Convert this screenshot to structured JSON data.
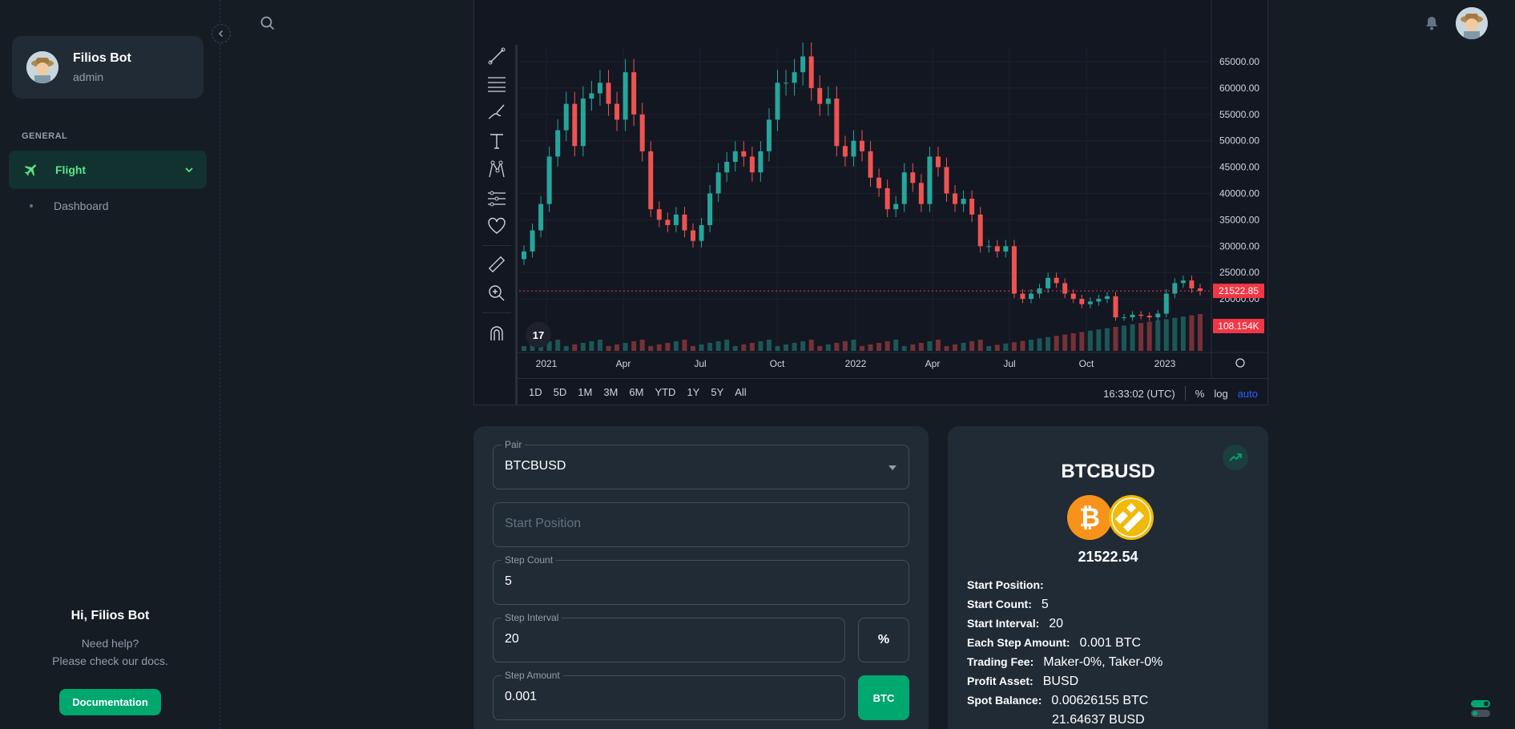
{
  "sidebar": {
    "user": {
      "name": "Filios Bot",
      "role": "admin"
    },
    "section_header": "GENERAL",
    "nav": {
      "flight_label": "Flight",
      "dashboard_label": "Dashboard"
    },
    "help": {
      "title": "Hi, Filios Bot",
      "line1": "Need help?",
      "line2": "Please check our docs.",
      "button": "Documentation"
    }
  },
  "chart": {
    "price_axis": [
      "65000.00",
      "60000.00",
      "55000.00",
      "50000.00",
      "45000.00",
      "40000.00",
      "35000.00",
      "30000.00",
      "25000.00",
      "20000.00"
    ],
    "last_price_label": "21522.85",
    "volume_label": "108.154K",
    "time_axis": [
      "2021",
      "Apr",
      "Jul",
      "Oct",
      "2022",
      "Apr",
      "Jul",
      "Oct",
      "2023"
    ],
    "ranges": [
      "1D",
      "5D",
      "1M",
      "3M",
      "6M",
      "YTD",
      "1Y",
      "5Y",
      "All"
    ],
    "clock": "16:33:02 (UTC)",
    "percent_label": "%",
    "log_label": "log",
    "auto_label": "auto",
    "colors": {
      "up": "#26a69a",
      "down": "#ef5350",
      "price_tag": "#f23645"
    }
  },
  "form": {
    "pair": {
      "label": "Pair",
      "value": "BTCBUSD"
    },
    "start_position": {
      "placeholder": "Start Position"
    },
    "step_count": {
      "label": "Step Count",
      "value": "5"
    },
    "step_interval": {
      "label": "Step Interval",
      "value": "20",
      "unit_button": "%"
    },
    "step_amount": {
      "label": "Step Amount",
      "value": "0.001",
      "unit_button": "BTC"
    }
  },
  "summary": {
    "title": "BTCBUSD",
    "price": "21522.54",
    "rows": [
      {
        "key": "Start Position:",
        "value": ""
      },
      {
        "key": "Start Count:",
        "value": "5"
      },
      {
        "key": "Start Interval:",
        "value": "20"
      },
      {
        "key": "Each Step Amount:",
        "value": "0.001 BTC"
      },
      {
        "key": "Trading Fee:",
        "value": "Maker-0%, Taker-0%"
      },
      {
        "key": "Profit Asset:",
        "value": "BUSD"
      },
      {
        "key": "Spot Balance:",
        "value": "0.00626155 BTC"
      }
    ],
    "spot_balance_2": "21.64637 BUSD"
  }
}
